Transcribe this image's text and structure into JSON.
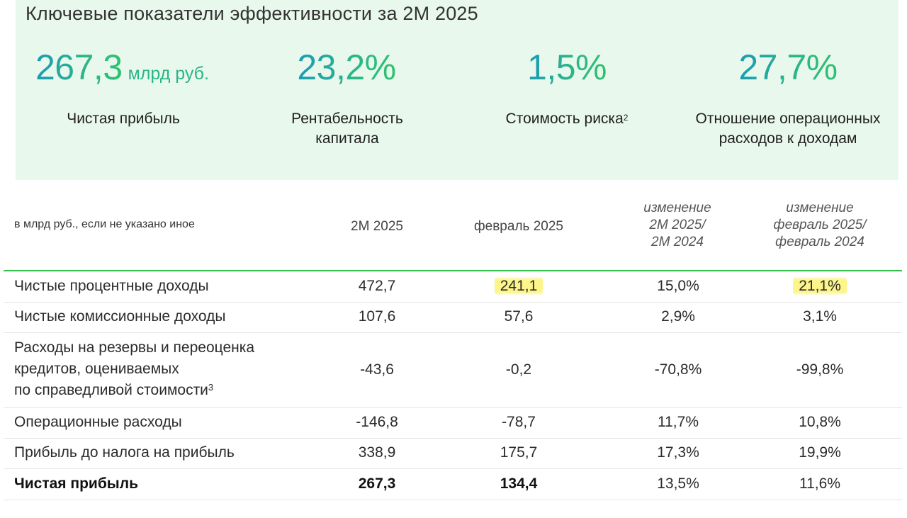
{
  "kpi": {
    "title": "Ключевые показатели эффективности за 2М 2025",
    "cards": [
      {
        "value": "267,3",
        "unit": "млрд руб.",
        "label": "Чистая прибыль"
      },
      {
        "value": "23,2%",
        "label_line1": "Рентабельность",
        "label_line2": "капитала"
      },
      {
        "value": "1,5%",
        "label": "Стоимость риска",
        "label_sup": "2"
      },
      {
        "value": "27,7%",
        "label_line1": "Отношение операционных",
        "label_line2": "расходов к доходам"
      }
    ]
  },
  "table": {
    "units_note": "в млрд руб., если не указано иное",
    "headers": {
      "col1": "2М 2025",
      "col2": "февраль 2025",
      "col3": [
        "изменение",
        "2М 2025/",
        "2М 2024"
      ],
      "col4": [
        "изменение",
        "февраль 2025/",
        "февраль 2024"
      ]
    },
    "rows": [
      {
        "label": "Чистые процентные доходы",
        "v1": "472,7",
        "v2": "241,1",
        "v3": "15,0%",
        "v4": "21,1%"
      },
      {
        "label": "Чистые комиссионные доходы",
        "v1": "107,6",
        "v2": "57,6",
        "v3": "2,9%",
        "v4": "3,1%"
      },
      {
        "label_lines": [
          "Расходы на резервы и переоценка",
          "кредитов, оцениваемых",
          "по справедливой стоимости"
        ],
        "label_sup": "3",
        "v1": "-43,6",
        "v2": "-0,2",
        "v3": "-70,8%",
        "v4": "-99,8%"
      },
      {
        "label": "Операционные расходы",
        "v1": "-146,8",
        "v2": "-78,7",
        "v3": "11,7%",
        "v4": "10,8%"
      },
      {
        "label": "Прибыль до налога на прибыль",
        "v1": "338,9",
        "v2": "175,7",
        "v3": "17,3%",
        "v4": "19,9%"
      },
      {
        "label": "Чистая прибыль",
        "v1": "267,3",
        "v2": "134,4",
        "v3": "13,5%",
        "v4": "11,6%"
      }
    ]
  },
  "colors": {
    "panel_bg": "#e9f8ec",
    "accent_green": "#35c04f",
    "kpi_teal": "#1b9bb5",
    "highlight": "#fdf58a"
  }
}
